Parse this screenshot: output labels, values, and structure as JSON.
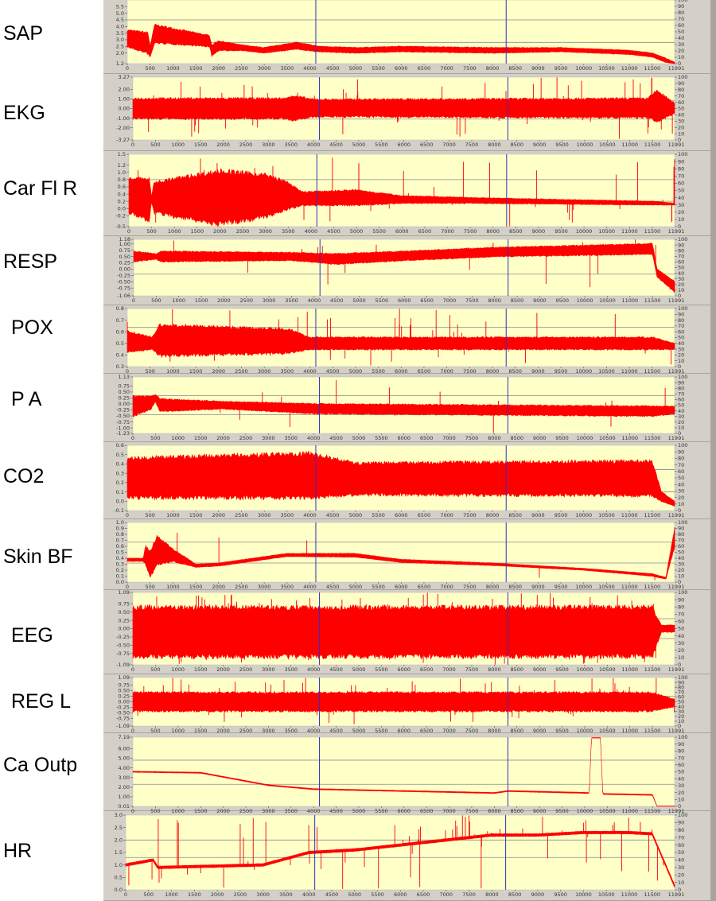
{
  "chart_data": {
    "type": "line",
    "title": "",
    "x_ticks": [
      0,
      500,
      1000,
      1500,
      2000,
      2500,
      3000,
      3500,
      4000,
      4500,
      5000,
      5500,
      6000,
      6500,
      7000,
      7500,
      8000,
      8500,
      9000,
      9500,
      10000,
      10500,
      11000,
      11500
    ],
    "x_end_label": "11991",
    "xlim": [
      0,
      11991
    ],
    "right_axis_ticks": [
      0,
      10,
      20,
      30,
      40,
      50,
      60,
      70,
      80,
      90,
      100
    ],
    "cursors": [
      4130,
      8300
    ],
    "colors": {
      "signal": "#ff0000",
      "cursor": "#3030c0",
      "plot_bg": "#ffffc8",
      "frame": "#d4d0c8",
      "grid": "#8a8a8a"
    },
    "panels": [
      {
        "label": "SAP",
        "ylim": [
          1.2,
          6.0
        ],
        "yticks": [
          "1.2",
          "2.0",
          "2.5",
          "3.0",
          "3.5",
          "4.0",
          "4.5",
          "5.0",
          "5.5"
        ],
        "ytick_values": [
          1.2,
          2.0,
          2.5,
          3.0,
          3.5,
          4.0,
          4.5,
          5.0,
          5.5
        ],
        "hlines": [
          4.5,
          2.8
        ],
        "envelope": [
          [
            0,
            2.5,
            3.7
          ],
          [
            450,
            2.0,
            3.5
          ],
          [
            500,
            1.7,
            2.5
          ],
          [
            600,
            2.8,
            4.1
          ],
          [
            1800,
            2.5,
            3.3
          ],
          [
            1850,
            1.8,
            2.6
          ],
          [
            2000,
            2.2,
            2.9
          ],
          [
            2500,
            2.2,
            2.6
          ],
          [
            3000,
            2.0,
            2.4
          ],
          [
            3700,
            2.3,
            2.8
          ],
          [
            4200,
            2.1,
            2.5
          ],
          [
            5000,
            2.0,
            2.4
          ],
          [
            6000,
            2.1,
            2.5
          ],
          [
            8000,
            2.0,
            2.4
          ],
          [
            9500,
            2.1,
            2.4
          ],
          [
            11000,
            1.9,
            2.2
          ],
          [
            11500,
            1.7,
            2.0
          ],
          [
            11800,
            1.3,
            1.6
          ],
          [
            11991,
            1.2,
            1.3
          ]
        ]
      },
      {
        "label": "EKG",
        "ylim": [
          -3.27,
          3.27
        ],
        "yticks": [
          "-3.27",
          "-2.00",
          "-1.00",
          "0.00",
          "1.00",
          "2.00",
          "3.27"
        ],
        "ytick_values": [
          -3.27,
          -2,
          -1,
          0,
          1,
          2,
          3.27
        ],
        "hlines": [
          0.8,
          -1.1
        ],
        "envelope": [
          [
            0,
            -1.0,
            1.0
          ],
          [
            3400,
            -1.0,
            1.0
          ],
          [
            3500,
            -1.2,
            1.3
          ],
          [
            4000,
            -0.8,
            0.9
          ],
          [
            11400,
            -0.9,
            1.0
          ],
          [
            11600,
            -1.3,
            1.8
          ],
          [
            11991,
            -0.5,
            0.5
          ]
        ]
      },
      {
        "label": "Car Fl R",
        "ylim": [
          -0.5,
          1.5
        ],
        "yticks": [
          "-0.5",
          "-0.2",
          "0.0",
          "0.2",
          "0.4",
          "0.6",
          "0.8",
          "1.0",
          "1.2",
          "1.5"
        ],
        "ytick_values": [
          -0.5,
          -0.2,
          0,
          0.2,
          0.4,
          0.6,
          0.8,
          1.0,
          1.2,
          1.5
        ],
        "hlines": [
          0.8,
          0.2
        ],
        "envelope": [
          [
            0,
            -0.1,
            0.8
          ],
          [
            450,
            -0.3,
            0.8
          ],
          [
            500,
            0.2,
            0.3
          ],
          [
            550,
            -0.1,
            0.7
          ],
          [
            2000,
            -0.4,
            1.0
          ],
          [
            3000,
            -0.2,
            0.9
          ],
          [
            3500,
            0.0,
            0.7
          ],
          [
            3800,
            0.1,
            0.45
          ],
          [
            5000,
            0.1,
            0.5
          ],
          [
            6000,
            0.15,
            0.35
          ],
          [
            7500,
            0.15,
            0.3
          ],
          [
            11500,
            0.1,
            0.2
          ],
          [
            11991,
            0.1,
            0.15
          ]
        ]
      },
      {
        "label": "RESP",
        "ylim": [
          -1.06,
          1.18
        ],
        "yticks": [
          "-1.06",
          "-0.75",
          "-0.50",
          "-0.25",
          "0.00",
          "0.25",
          "0.50",
          "0.75",
          "1.00",
          "1.18"
        ],
        "ytick_values": [
          -1.06,
          -0.75,
          -0.5,
          -0.25,
          0,
          0.25,
          0.5,
          0.75,
          1.0,
          1.18
        ],
        "hlines": [
          -0.2
        ],
        "envelope": [
          [
            0,
            0.3,
            0.7
          ],
          [
            500,
            0.4,
            0.6
          ],
          [
            600,
            0.3,
            0.7
          ],
          [
            3500,
            0.35,
            0.65
          ],
          [
            4500,
            0.2,
            0.6
          ],
          [
            6000,
            0.35,
            0.7
          ],
          [
            8000,
            0.5,
            0.85
          ],
          [
            11500,
            0.6,
            1.0
          ],
          [
            11600,
            -0.3,
            0.0
          ],
          [
            11991,
            -0.9,
            -0.5
          ]
        ]
      },
      {
        "label": "POX",
        "ylim": [
          0.3,
          0.8
        ],
        "yticks": [
          "0.3",
          "0.4",
          "0.5",
          "0.6",
          "0.7",
          "0.8"
        ],
        "ytick_values": [
          0.3,
          0.4,
          0.5,
          0.6,
          0.7,
          0.8
        ],
        "hlines": [
          0.64,
          0.46
        ],
        "envelope": [
          [
            0,
            0.43,
            0.6
          ],
          [
            550,
            0.45,
            0.55
          ],
          [
            700,
            0.4,
            0.65
          ],
          [
            3500,
            0.42,
            0.62
          ],
          [
            4000,
            0.45,
            0.55
          ],
          [
            11500,
            0.45,
            0.55
          ],
          [
            11991,
            0.45,
            0.5
          ]
        ]
      },
      {
        "label": "P A",
        "ylim": [
          -1.23,
          1.13
        ],
        "yticks": [
          "-1.23",
          "-1.00",
          "-0.75",
          "-0.50",
          "-0.25",
          "0.00",
          "0.25",
          "0.50",
          "0.75",
          "1.13"
        ],
        "ytick_values": [
          -1.23,
          -1,
          -0.75,
          -0.5,
          -0.25,
          0,
          0.25,
          0.5,
          0.75,
          1.13
        ],
        "hlines": [
          0.35,
          -0.45
        ],
        "envelope": [
          [
            0,
            -0.5,
            0.3
          ],
          [
            400,
            -0.2,
            0.3
          ],
          [
            500,
            0.1,
            0.4
          ],
          [
            600,
            -0.3,
            0.2
          ],
          [
            2000,
            -0.2,
            0.1
          ],
          [
            4000,
            -0.4,
            0.0
          ],
          [
            11500,
            -0.5,
            -0.1
          ],
          [
            11991,
            -0.4,
            -0.1
          ]
        ]
      },
      {
        "label": "CO2",
        "ylim": [
          -0.1,
          0.6
        ],
        "yticks": [
          "-0.1",
          "0.0",
          "0.1",
          "0.2",
          "0.3",
          "0.4",
          "0.5",
          "0.6"
        ],
        "ytick_values": [
          -0.1,
          0,
          0.1,
          0.2,
          0.3,
          0.4,
          0.5,
          0.6
        ],
        "hlines": [
          0.34,
          0.1
        ],
        "envelope": [
          [
            0,
            0.05,
            0.45
          ],
          [
            4000,
            0.05,
            0.5
          ],
          [
            5000,
            0.08,
            0.4
          ],
          [
            11500,
            0.07,
            0.42
          ],
          [
            11700,
            0.0,
            0.1
          ],
          [
            11991,
            -0.05,
            0.0
          ]
        ]
      },
      {
        "label": "Skin BF",
        "ylim": [
          0,
          1.0
        ],
        "yticks": [
          "0.0",
          "0.1",
          "0.2",
          "0.3",
          "0.4",
          "0.5",
          "0.6",
          "0.7",
          "0.8",
          "0.9",
          "1.0"
        ],
        "ytick_values": [
          0,
          0.1,
          0.2,
          0.3,
          0.4,
          0.5,
          0.6,
          0.7,
          0.8,
          0.9,
          1.0
        ],
        "hlines": [
          0.67,
          0.32
        ],
        "envelope": [
          [
            0,
            0.35,
            0.4
          ],
          [
            350,
            0.35,
            0.4
          ],
          [
            400,
            0.3,
            0.6
          ],
          [
            500,
            0.1,
            0.5
          ],
          [
            650,
            0.3,
            0.75
          ],
          [
            1000,
            0.35,
            0.55
          ],
          [
            1500,
            0.25,
            0.3
          ],
          [
            2000,
            0.27,
            0.32
          ],
          [
            3500,
            0.43,
            0.48
          ],
          [
            5000,
            0.42,
            0.48
          ],
          [
            6000,
            0.33,
            0.38
          ],
          [
            8000,
            0.28,
            0.32
          ],
          [
            10000,
            0.2,
            0.23
          ],
          [
            11500,
            0.1,
            0.14
          ],
          [
            11800,
            0.05,
            0.08
          ],
          [
            11991,
            0.6,
            0.9
          ]
        ]
      },
      {
        "label": "EEG",
        "ylim": [
          -1.09,
          1.09
        ],
        "yticks": [
          "-1.09",
          "-0.75",
          "-0.50",
          "-0.25",
          "0.00",
          "0.25",
          "0.50",
          "0.75",
          "1.09"
        ],
        "ytick_values": [
          -1.09,
          -0.75,
          -0.5,
          -0.25,
          0,
          0.25,
          0.5,
          0.75,
          1.09
        ],
        "hlines": [
          0.3,
          -0.3
        ],
        "envelope": [
          [
            0,
            -0.8,
            0.6
          ],
          [
            11500,
            -0.8,
            0.6
          ],
          [
            11700,
            -0.1,
            0.1
          ],
          [
            11991,
            -0.1,
            0.1
          ]
        ]
      },
      {
        "label": "REG L",
        "ylim": [
          -1.09,
          1.09
        ],
        "yticks": [
          "-1.09",
          "-0.75",
          "-0.50",
          "-0.25",
          "0.00",
          "0.25",
          "0.50",
          "0.75",
          "1.09"
        ],
        "ytick_values": [
          -1.09,
          -0.75,
          -0.5,
          -0.25,
          0,
          0.25,
          0.5,
          0.75,
          1.09
        ],
        "hlines": [
          0.25,
          -0.25
        ],
        "envelope": [
          [
            0,
            -0.4,
            0.4
          ],
          [
            11500,
            -0.4,
            0.4
          ],
          [
            11991,
            -0.2,
            0.1
          ]
        ]
      },
      {
        "label": "Ca Outp",
        "ylim": [
          0.01,
          7.19
        ],
        "yticks": [
          "0.01",
          "1.00",
          "2.00",
          "3.00",
          "4.00",
          "5.00",
          "6.00",
          "7.19"
        ],
        "ytick_values": [
          0.01,
          1,
          2,
          3,
          4,
          5,
          6,
          7.19
        ],
        "hlines": [
          4.8,
          2.3
        ],
        "envelope": [
          [
            0,
            3.55,
            3.65
          ],
          [
            1500,
            3.45,
            3.55
          ],
          [
            3000,
            2.15,
            2.25
          ],
          [
            4000,
            1.75,
            1.85
          ],
          [
            8000,
            1.35,
            1.45
          ],
          [
            8300,
            1.55,
            1.65
          ],
          [
            10100,
            1.35,
            1.45
          ],
          [
            10150,
            7.1,
            7.15
          ],
          [
            10350,
            7.1,
            7.15
          ],
          [
            10400,
            1.25,
            1.35
          ],
          [
            11500,
            1.15,
            1.25
          ],
          [
            11600,
            0.01,
            0.05
          ],
          [
            11991,
            0.01,
            0.05
          ]
        ]
      },
      {
        "label": "HR",
        "ylim": [
          0,
          3.0
        ],
        "yticks": [
          "0.0",
          "0.5",
          "1.0",
          "1.5",
          "2.0",
          "2.5",
          "3.0"
        ],
        "ytick_values": [
          0,
          0.5,
          1,
          1.5,
          2,
          2.5,
          3
        ],
        "hlines": [
          2.0,
          1.3
        ],
        "envelope": [
          [
            0,
            0.95,
            1.05
          ],
          [
            600,
            1.15,
            1.25
          ],
          [
            700,
            0.85,
            0.95
          ],
          [
            3000,
            0.95,
            1.05
          ],
          [
            4000,
            1.45,
            1.55
          ],
          [
            5000,
            1.55,
            1.65
          ],
          [
            6000,
            1.75,
            1.85
          ],
          [
            7000,
            1.95,
            2.05
          ],
          [
            8000,
            2.15,
            2.25
          ],
          [
            9000,
            2.15,
            2.25
          ],
          [
            10000,
            2.25,
            2.35
          ],
          [
            11000,
            2.25,
            2.35
          ],
          [
            11500,
            2.2,
            2.3
          ],
          [
            11991,
            0.1,
            0.2
          ]
        ]
      }
    ]
  }
}
